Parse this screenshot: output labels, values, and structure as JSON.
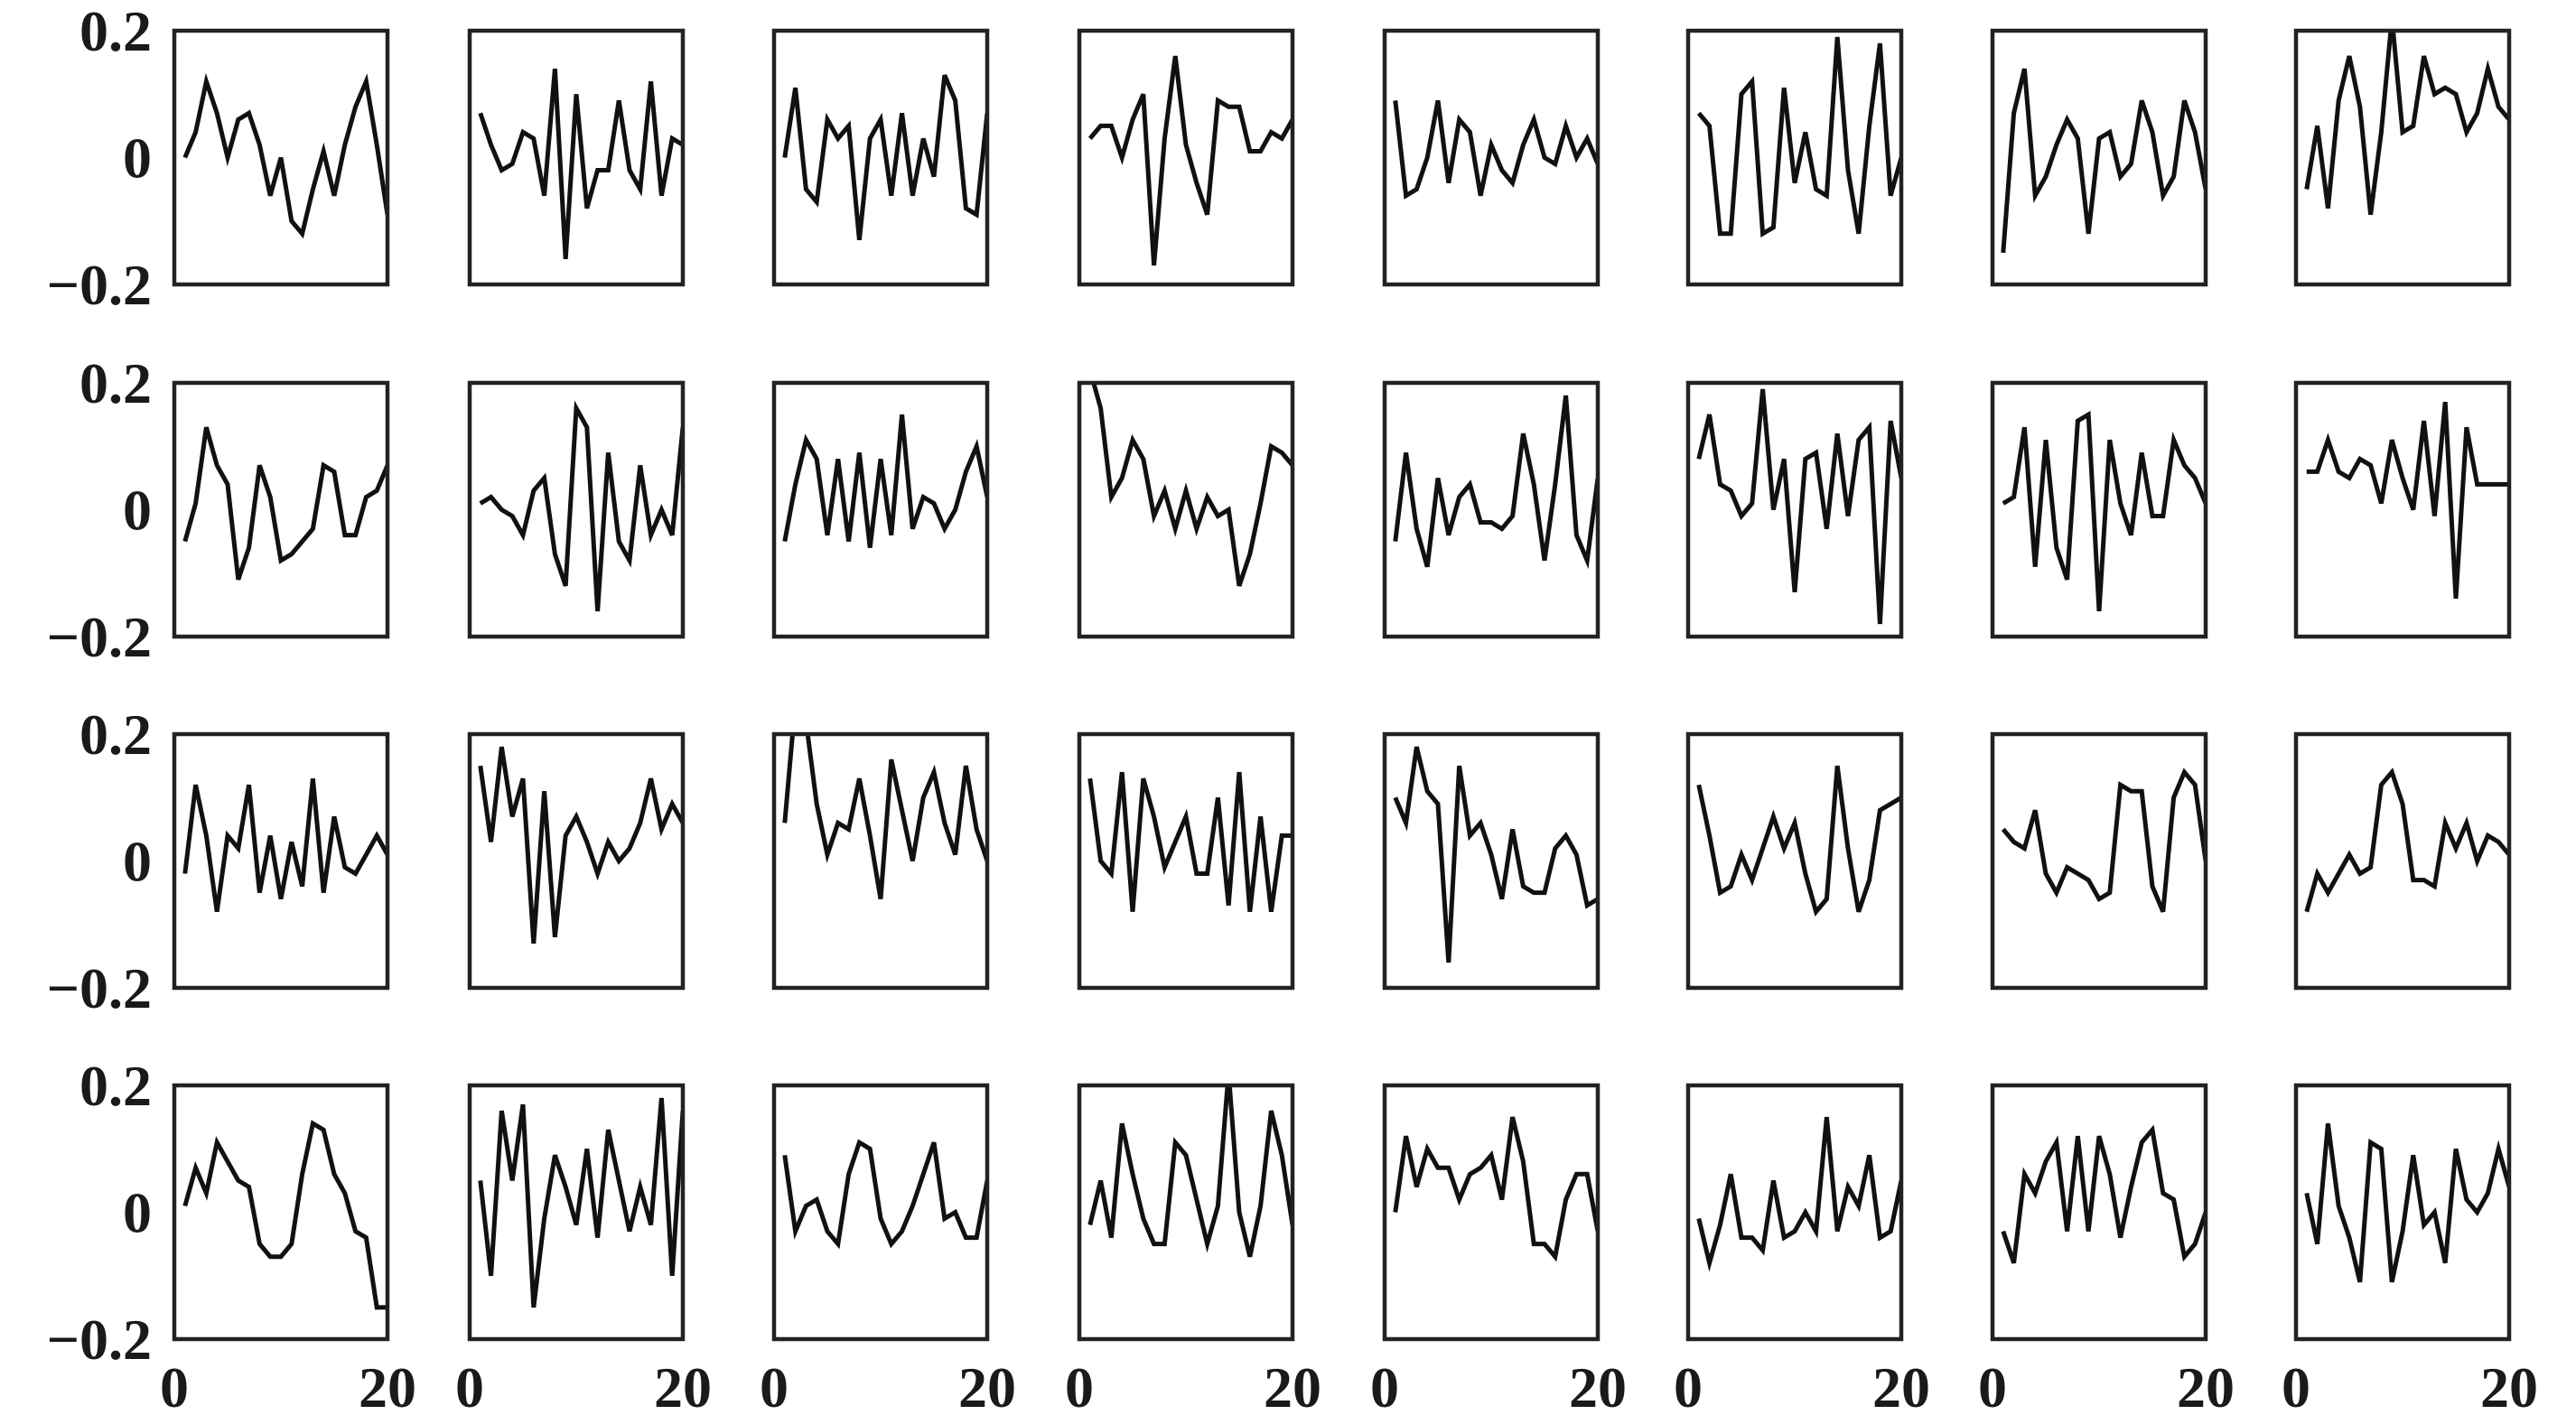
{
  "chart_data": {
    "type": "line",
    "layout": "small-multiples grid, 4 rows x 8 columns",
    "xlim": [
      0,
      20
    ],
    "ylim": [
      -0.2,
      0.2
    ],
    "x_tick_labels": [
      "0",
      "20"
    ],
    "y_tick_labels": [
      "0.2",
      "0",
      "−0.2"
    ],
    "grid": false,
    "legend": "none",
    "line_color": "#111111",
    "frame_color": "#222222",
    "x": [
      1,
      2,
      3,
      4,
      5,
      6,
      7,
      8,
      9,
      10,
      11,
      12,
      13,
      14,
      15,
      16,
      17,
      18,
      19,
      20
    ],
    "panels": [
      [
        [
          0.0,
          0.04,
          0.12,
          0.07,
          0.0,
          0.06,
          0.07,
          0.02,
          -0.06,
          0.0,
          -0.1,
          -0.12,
          -0.05,
          0.01,
          -0.06,
          0.02,
          0.08,
          0.12,
          0.02,
          -0.09
        ],
        [
          0.07,
          0.02,
          -0.02,
          -0.01,
          0.04,
          0.03,
          -0.06,
          0.14,
          -0.16,
          0.1,
          -0.08,
          -0.02,
          -0.02,
          0.09,
          -0.02,
          -0.05,
          0.12,
          -0.06,
          0.03,
          0.02
        ],
        [
          0.0,
          0.11,
          -0.05,
          -0.07,
          0.06,
          0.03,
          0.05,
          -0.13,
          0.03,
          0.06,
          -0.06,
          0.07,
          -0.06,
          0.03,
          -0.03,
          0.13,
          0.09,
          -0.08,
          -0.09,
          0.07
        ],
        [
          0.03,
          0.05,
          0.05,
          0.0,
          0.06,
          0.1,
          -0.17,
          0.03,
          0.16,
          0.02,
          -0.04,
          -0.09,
          0.09,
          0.08,
          0.08,
          0.01,
          0.01,
          0.04,
          0.03,
          0.06
        ],
        [
          0.09,
          -0.06,
          -0.05,
          0.0,
          0.09,
          -0.04,
          0.06,
          0.04,
          -0.06,
          0.02,
          -0.02,
          -0.04,
          0.02,
          0.06,
          0.0,
          -0.01,
          0.05,
          0.0,
          0.03,
          -0.01
        ],
        [
          0.07,
          0.05,
          -0.12,
          -0.12,
          0.1,
          0.12,
          -0.12,
          -0.11,
          0.11,
          -0.04,
          0.04,
          -0.05,
          -0.06,
          0.19,
          -0.02,
          -0.12,
          0.05,
          0.18,
          -0.06,
          0.0
        ],
        [
          -0.15,
          0.07,
          0.14,
          -0.06,
          -0.03,
          0.02,
          0.06,
          0.03,
          -0.12,
          0.03,
          0.04,
          -0.03,
          -0.01,
          0.09,
          0.04,
          -0.06,
          -0.03,
          0.09,
          0.04,
          -0.05
        ],
        [
          -0.05,
          0.05,
          -0.08,
          0.09,
          0.16,
          0.08,
          -0.09,
          0.04,
          0.22,
          0.04,
          0.05,
          0.16,
          0.1,
          0.11,
          0.1,
          0.04,
          0.07,
          0.14,
          0.08,
          0.06
        ]
      ],
      [
        [
          -0.05,
          0.01,
          0.13,
          0.07,
          0.04,
          -0.11,
          -0.06,
          0.07,
          0.02,
          -0.08,
          -0.07,
          -0.05,
          -0.03,
          0.07,
          0.06,
          -0.04,
          -0.04,
          0.02,
          0.03,
          0.07
        ],
        [
          0.01,
          0.02,
          0.0,
          -0.01,
          -0.04,
          0.03,
          0.05,
          -0.07,
          -0.12,
          0.16,
          0.13,
          -0.16,
          0.09,
          -0.05,
          -0.08,
          0.07,
          -0.04,
          0.0,
          -0.04,
          0.13
        ],
        [
          -0.05,
          0.04,
          0.11,
          0.08,
          -0.04,
          0.08,
          -0.05,
          0.09,
          -0.06,
          0.08,
          -0.04,
          0.15,
          -0.03,
          0.02,
          0.01,
          -0.03,
          0.0,
          0.06,
          0.1,
          0.02
        ],
        [
          0.22,
          0.16,
          0.02,
          0.05,
          0.11,
          0.08,
          -0.01,
          0.03,
          -0.03,
          0.03,
          -0.03,
          0.02,
          -0.01,
          0.0,
          -0.12,
          -0.07,
          0.01,
          0.1,
          0.09,
          0.07
        ],
        [
          -0.05,
          0.09,
          -0.03,
          -0.09,
          0.05,
          -0.04,
          0.02,
          0.04,
          -0.02,
          -0.02,
          -0.03,
          -0.01,
          0.12,
          0.04,
          -0.08,
          0.04,
          0.18,
          -0.04,
          -0.08,
          0.05
        ],
        [
          0.08,
          0.15,
          0.04,
          0.03,
          -0.01,
          0.01,
          0.19,
          0.0,
          0.08,
          -0.13,
          0.08,
          0.09,
          -0.03,
          0.12,
          -0.01,
          0.11,
          0.13,
          -0.18,
          0.14,
          0.05
        ],
        [
          0.01,
          0.02,
          0.13,
          -0.09,
          0.11,
          -0.06,
          -0.11,
          0.14,
          0.15,
          -0.16,
          0.11,
          0.01,
          -0.04,
          0.09,
          -0.01,
          -0.01,
          0.11,
          0.07,
          0.05,
          0.01
        ],
        [
          0.06,
          0.06,
          0.11,
          0.06,
          0.05,
          0.08,
          0.07,
          0.01,
          0.11,
          0.05,
          0.0,
          0.14,
          -0.01,
          0.17,
          -0.14,
          0.13,
          0.04,
          0.04,
          0.04,
          0.04
        ]
      ],
      [
        [
          -0.02,
          0.12,
          0.04,
          -0.08,
          0.04,
          0.02,
          0.12,
          -0.05,
          0.04,
          -0.06,
          0.03,
          -0.04,
          0.13,
          -0.05,
          0.07,
          -0.01,
          -0.02,
          0.01,
          0.04,
          0.01
        ],
        [
          0.15,
          0.03,
          0.18,
          0.07,
          0.13,
          -0.13,
          0.11,
          -0.12,
          0.04,
          0.07,
          0.03,
          -0.02,
          0.03,
          0.0,
          0.02,
          0.06,
          0.13,
          0.05,
          0.09,
          0.06
        ],
        [
          0.06,
          0.25,
          0.22,
          0.09,
          0.01,
          0.06,
          0.05,
          0.13,
          0.04,
          -0.06,
          0.16,
          0.08,
          0.0,
          0.1,
          0.14,
          0.06,
          0.01,
          0.15,
          0.05,
          0.0
        ],
        [
          0.13,
          0.0,
          -0.02,
          0.14,
          -0.08,
          0.13,
          0.07,
          -0.01,
          0.03,
          0.07,
          -0.02,
          -0.02,
          0.1,
          -0.07,
          0.14,
          -0.08,
          0.07,
          -0.08,
          0.04,
          0.04
        ],
        [
          0.1,
          0.06,
          0.18,
          0.11,
          0.09,
          -0.16,
          0.15,
          0.04,
          0.06,
          0.01,
          -0.06,
          0.05,
          -0.04,
          -0.05,
          -0.05,
          0.02,
          0.04,
          0.01,
          -0.07,
          -0.06
        ],
        [
          0.12,
          0.04,
          -0.05,
          -0.04,
          0.01,
          -0.03,
          0.02,
          0.07,
          0.02,
          0.06,
          -0.02,
          -0.08,
          -0.06,
          0.15,
          0.02,
          -0.08,
          -0.03,
          0.08,
          0.09,
          0.1
        ],
        [
          0.05,
          0.03,
          0.02,
          0.08,
          -0.02,
          -0.05,
          -0.01,
          -0.02,
          -0.03,
          -0.06,
          -0.05,
          0.12,
          0.11,
          0.11,
          -0.04,
          -0.08,
          0.1,
          0.14,
          0.12,
          0.0
        ],
        [
          -0.08,
          -0.02,
          -0.05,
          -0.02,
          0.01,
          -0.02,
          -0.01,
          0.12,
          0.14,
          0.09,
          -0.03,
          -0.03,
          -0.04,
          0.06,
          0.02,
          0.06,
          0.0,
          0.04,
          0.03,
          0.01
        ]
      ],
      [
        [
          0.01,
          0.07,
          0.03,
          0.11,
          0.08,
          0.05,
          0.04,
          -0.05,
          -0.07,
          -0.07,
          -0.05,
          0.06,
          0.14,
          0.13,
          0.06,
          0.03,
          -0.03,
          -0.04,
          -0.15,
          -0.15
        ],
        [
          0.05,
          -0.1,
          0.16,
          0.05,
          0.17,
          -0.15,
          -0.01,
          0.09,
          0.04,
          -0.02,
          0.1,
          -0.04,
          0.13,
          0.05,
          -0.03,
          0.04,
          -0.02,
          0.18,
          -0.1,
          0.16
        ],
        [
          0.09,
          -0.03,
          0.01,
          0.02,
          -0.03,
          -0.05,
          0.06,
          0.11,
          0.1,
          -0.01,
          -0.05,
          -0.03,
          0.01,
          0.06,
          0.11,
          -0.01,
          0.0,
          -0.04,
          -0.04,
          0.05
        ],
        [
          -0.02,
          0.05,
          -0.04,
          0.14,
          0.06,
          -0.01,
          -0.05,
          -0.05,
          0.11,
          0.09,
          0.02,
          -0.05,
          0.01,
          0.22,
          0.0,
          -0.07,
          0.01,
          0.16,
          0.09,
          -0.02
        ],
        [
          0.0,
          0.12,
          0.04,
          0.1,
          0.07,
          0.07,
          0.02,
          0.06,
          0.07,
          0.09,
          0.02,
          0.15,
          0.08,
          -0.05,
          -0.05,
          -0.07,
          0.02,
          0.06,
          0.06,
          -0.03
        ],
        [
          -0.01,
          -0.08,
          -0.02,
          0.06,
          -0.04,
          -0.04,
          -0.06,
          0.05,
          -0.04,
          -0.03,
          0.0,
          -0.03,
          0.15,
          -0.03,
          0.04,
          0.01,
          0.09,
          -0.04,
          -0.03,
          0.05
        ],
        [
          -0.03,
          -0.08,
          0.06,
          0.03,
          0.08,
          0.11,
          -0.03,
          0.12,
          -0.03,
          0.12,
          0.06,
          -0.04,
          0.04,
          0.11,
          0.13,
          0.03,
          0.02,
          -0.07,
          -0.05,
          0.0
        ],
        [
          0.03,
          -0.05,
          0.14,
          0.01,
          -0.04,
          -0.11,
          0.11,
          0.1,
          -0.11,
          -0.03,
          0.09,
          -0.02,
          0.0,
          -0.08,
          0.1,
          0.02,
          0.0,
          0.03,
          0.1,
          0.04
        ]
      ]
    ]
  }
}
